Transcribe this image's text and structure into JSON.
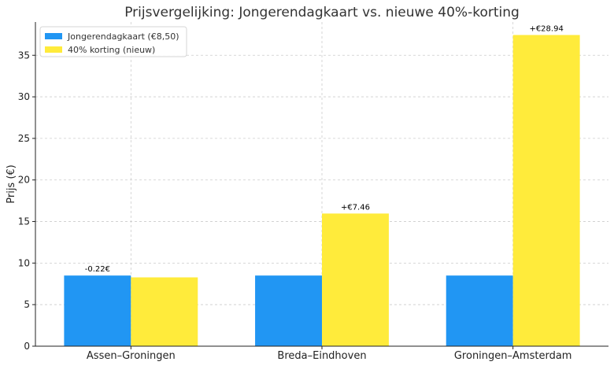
{
  "chart_data": {
    "type": "bar",
    "title": "Prijsvergelijking: Jongerendagkaart vs. nieuwe 40%-korting",
    "xlabel": "",
    "ylabel": "Prijs (€)",
    "categories": [
      "Assen–Groningen",
      "Breda–Eindhoven",
      "Groningen–Amsterdam"
    ],
    "series": [
      {
        "name": "Jongerendagkaart (€8,50)",
        "values": [
          8.5,
          8.5,
          8.5
        ],
        "color": "#2196f3"
      },
      {
        "name": "40% korting (nieuw)",
        "values": [
          8.28,
          15.96,
          37.44
        ],
        "color": "#ffeb3b"
      }
    ],
    "data_labels": [
      "-0.22€",
      "+€7.46",
      "+€28.94"
    ],
    "ylim": [
      0,
      39
    ],
    "yticks": [
      0,
      5,
      10,
      15,
      20,
      25,
      30,
      35
    ],
    "grid": true,
    "legend_position": "top-left"
  }
}
